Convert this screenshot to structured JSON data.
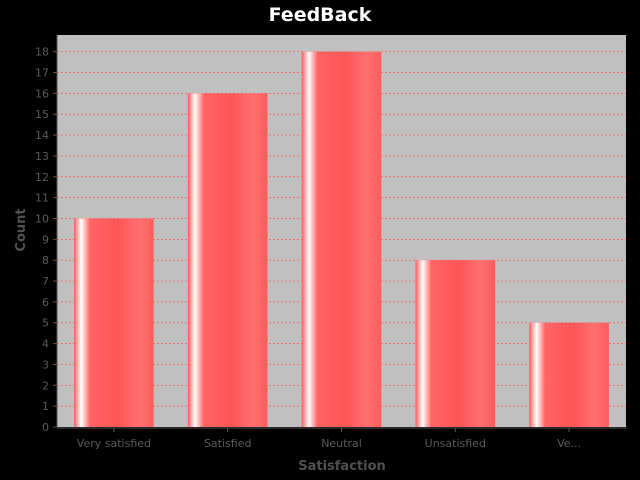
{
  "chart_data": {
    "type": "bar",
    "title": "FeedBack",
    "xlabel": "Satisfaction",
    "ylabel": "Count",
    "categories": [
      "Very satisfied",
      "Satisfied",
      "Neutral",
      "Unsatisfied",
      "Ve..."
    ],
    "values": [
      10,
      16,
      18,
      8,
      5
    ],
    "ylim": [
      0,
      18.8
    ],
    "yticks": [
      0,
      1,
      2,
      3,
      4,
      5,
      6,
      7,
      8,
      9,
      10,
      11,
      12,
      13,
      14,
      15,
      16,
      17,
      18
    ],
    "grid": true,
    "legend": "none",
    "colors": {
      "background": "#000000",
      "plot_background": "#c0c0c0",
      "bar": "#ff5555",
      "bar_highlight": "#ffffff",
      "gridline": "#ff5555"
    }
  }
}
